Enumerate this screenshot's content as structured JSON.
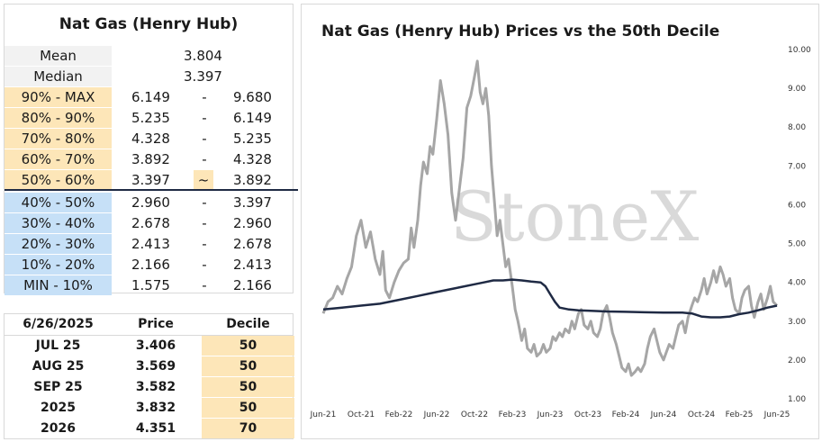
{
  "decile_table": {
    "title": "Nat Gas (Henry Hub)",
    "mean_label": "Mean",
    "mean_value": "3.804",
    "median_label": "Median",
    "median_value": "3.397",
    "rows": [
      {
        "label": "90% - MAX",
        "low": "6.149",
        "sep": "-",
        "high": "9.680",
        "tone": "orange"
      },
      {
        "label": "80% - 90%",
        "low": "5.235",
        "sep": "-",
        "high": "6.149",
        "tone": "orange"
      },
      {
        "label": "70% - 80%",
        "low": "4.328",
        "sep": "-",
        "high": "5.235",
        "tone": "orange"
      },
      {
        "label": "60% - 70%",
        "low": "3.892",
        "sep": "-",
        "high": "4.328",
        "tone": "orange"
      },
      {
        "label": "50% - 60%",
        "low": "3.397",
        "sep": "~",
        "high": "3.892",
        "tone": "orange"
      },
      {
        "label": "40% - 50%",
        "low": "2.960",
        "sep": "-",
        "high": "3.397",
        "tone": "blue"
      },
      {
        "label": "30% - 40%",
        "low": "2.678",
        "sep": "-",
        "high": "2.960",
        "tone": "blue"
      },
      {
        "label": "20% - 30%",
        "low": "2.413",
        "sep": "-",
        "high": "2.678",
        "tone": "blue"
      },
      {
        "label": "10% - 20%",
        "low": "2.166",
        "sep": "-",
        "high": "2.413",
        "tone": "blue"
      },
      {
        "label": "MIN - 10%",
        "low": "1.575",
        "sep": "-",
        "high": "2.166",
        "tone": "blue"
      }
    ],
    "colors": {
      "orange": "#fde6b8",
      "blue": "#c6e0f7",
      "divider": "#1f2a44"
    }
  },
  "forward_table": {
    "headers": [
      "6/26/2025",
      "Price",
      "Decile"
    ],
    "rows": [
      {
        "contract": "JUL 25",
        "price": "3.406",
        "decile": "50"
      },
      {
        "contract": "AUG 25",
        "price": "3.569",
        "decile": "50"
      },
      {
        "contract": "SEP 25",
        "price": "3.582",
        "decile": "50"
      },
      {
        "contract": "2025",
        "price": "3.832",
        "decile": "50"
      },
      {
        "contract": "2026",
        "price": "4.351",
        "decile": "70"
      }
    ]
  },
  "chart_data": {
    "type": "line",
    "title": "Nat Gas (Henry Hub) Prices vs the 50th Decile",
    "watermark": "StoneX",
    "x_tick_labels": [
      "Jun-21",
      "Oct-21",
      "Feb-22",
      "Jun-22",
      "Oct-22",
      "Feb-23",
      "Jun-23",
      "Oct-23",
      "Feb-24",
      "Jun-24",
      "Oct-24",
      "Feb-25",
      "Jun-25"
    ],
    "y_tick_labels": [
      "1.00",
      "2.00",
      "3.00",
      "4.00",
      "5.00",
      "6.00",
      "7.00",
      "8.00",
      "9.00",
      "10.00"
    ],
    "ylim": [
      1,
      10
    ],
    "y_axis_position": "right",
    "x_range_months": [
      0,
      48
    ],
    "series": [
      {
        "color": "#a6a6a6",
        "points": [
          [
            0,
            3.2
          ],
          [
            0.5,
            3.5
          ],
          [
            1,
            3.6
          ],
          [
            1.5,
            3.9
          ],
          [
            2,
            3.7
          ],
          [
            2.5,
            4.1
          ],
          [
            3,
            4.4
          ],
          [
            3.5,
            5.2
          ],
          [
            4,
            5.6
          ],
          [
            4.5,
            4.9
          ],
          [
            5,
            5.3
          ],
          [
            5.5,
            4.6
          ],
          [
            6,
            4.2
          ],
          [
            6.3,
            4.8
          ],
          [
            6.6,
            3.8
          ],
          [
            7,
            3.6
          ],
          [
            7.5,
            4.0
          ],
          [
            8,
            4.3
          ],
          [
            8.5,
            4.5
          ],
          [
            9,
            4.6
          ],
          [
            9.3,
            5.4
          ],
          [
            9.6,
            4.9
          ],
          [
            10,
            5.6
          ],
          [
            10.3,
            6.5
          ],
          [
            10.6,
            7.1
          ],
          [
            11,
            6.8
          ],
          [
            11.3,
            7.5
          ],
          [
            11.6,
            7.3
          ],
          [
            12,
            8.2
          ],
          [
            12.4,
            9.2
          ],
          [
            12.8,
            8.6
          ],
          [
            13.2,
            7.8
          ],
          [
            13.6,
            6.3
          ],
          [
            14,
            5.6
          ],
          [
            14.4,
            6.4
          ],
          [
            14.8,
            7.2
          ],
          [
            15.2,
            8.5
          ],
          [
            15.6,
            8.8
          ],
          [
            16,
            9.3
          ],
          [
            16.3,
            9.7
          ],
          [
            16.6,
            8.9
          ],
          [
            16.9,
            8.6
          ],
          [
            17.2,
            9.0
          ],
          [
            17.5,
            8.3
          ],
          [
            17.8,
            7.0
          ],
          [
            18.1,
            6.1
          ],
          [
            18.4,
            5.2
          ],
          [
            18.7,
            5.6
          ],
          [
            19,
            5.0
          ],
          [
            19.3,
            4.4
          ],
          [
            19.6,
            4.6
          ],
          [
            20,
            3.9
          ],
          [
            20.3,
            3.3
          ],
          [
            20.6,
            3.0
          ],
          [
            21,
            2.5
          ],
          [
            21.3,
            2.8
          ],
          [
            21.6,
            2.3
          ],
          [
            22,
            2.2
          ],
          [
            22.3,
            2.4
          ],
          [
            22.6,
            2.1
          ],
          [
            23,
            2.2
          ],
          [
            23.3,
            2.4
          ],
          [
            23.6,
            2.2
          ],
          [
            24,
            2.3
          ],
          [
            24.3,
            2.6
          ],
          [
            24.6,
            2.5
          ],
          [
            25,
            2.7
          ],
          [
            25.3,
            2.6
          ],
          [
            25.6,
            2.8
          ],
          [
            26,
            2.7
          ],
          [
            26.3,
            3.0
          ],
          [
            26.6,
            2.8
          ],
          [
            27,
            3.2
          ],
          [
            27.3,
            3.3
          ],
          [
            27.6,
            2.9
          ],
          [
            28,
            2.8
          ],
          [
            28.3,
            3.0
          ],
          [
            28.6,
            2.7
          ],
          [
            29,
            2.6
          ],
          [
            29.3,
            2.8
          ],
          [
            29.6,
            3.2
          ],
          [
            30,
            3.4
          ],
          [
            30.3,
            3.1
          ],
          [
            30.6,
            2.7
          ],
          [
            31,
            2.4
          ],
          [
            31.3,
            2.1
          ],
          [
            31.6,
            1.8
          ],
          [
            32,
            1.7
          ],
          [
            32.3,
            1.9
          ],
          [
            32.6,
            1.6
          ],
          [
            33,
            1.7
          ],
          [
            33.3,
            1.8
          ],
          [
            33.6,
            1.7
          ],
          [
            34,
            1.9
          ],
          [
            34.3,
            2.3
          ],
          [
            34.6,
            2.6
          ],
          [
            35,
            2.8
          ],
          [
            35.3,
            2.5
          ],
          [
            35.6,
            2.2
          ],
          [
            36,
            2.0
          ],
          [
            36.3,
            2.2
          ],
          [
            36.6,
            2.4
          ],
          [
            37,
            2.3
          ],
          [
            37.3,
            2.6
          ],
          [
            37.6,
            2.9
          ],
          [
            38,
            3.0
          ],
          [
            38.3,
            2.7
          ],
          [
            38.6,
            3.1
          ],
          [
            39,
            3.4
          ],
          [
            39.3,
            3.6
          ],
          [
            39.6,
            3.5
          ],
          [
            40,
            3.8
          ],
          [
            40.3,
            4.1
          ],
          [
            40.6,
            3.7
          ],
          [
            41,
            4.0
          ],
          [
            41.3,
            4.3
          ],
          [
            41.6,
            4.0
          ],
          [
            42,
            4.4
          ],
          [
            42.3,
            4.2
          ],
          [
            42.6,
            3.9
          ],
          [
            43,
            4.1
          ],
          [
            43.3,
            3.6
          ],
          [
            43.6,
            3.3
          ],
          [
            44,
            3.2
          ],
          [
            44.3,
            3.6
          ],
          [
            44.6,
            3.8
          ],
          [
            45,
            3.9
          ],
          [
            45.3,
            3.4
          ],
          [
            45.6,
            3.1
          ],
          [
            46,
            3.5
          ],
          [
            46.3,
            3.7
          ],
          [
            46.6,
            3.3
          ],
          [
            47,
            3.6
          ],
          [
            47.3,
            3.9
          ],
          [
            47.6,
            3.5
          ],
          [
            48,
            3.4
          ]
        ]
      },
      {
        "color": "#1f2a44",
        "points": [
          [
            0,
            3.3
          ],
          [
            2,
            3.35
          ],
          [
            4,
            3.4
          ],
          [
            6,
            3.45
          ],
          [
            8,
            3.55
          ],
          [
            10,
            3.65
          ],
          [
            12,
            3.75
          ],
          [
            14,
            3.85
          ],
          [
            16,
            3.95
          ],
          [
            17,
            4.0
          ],
          [
            18,
            4.05
          ],
          [
            19,
            4.05
          ],
          [
            20,
            4.07
          ],
          [
            21,
            4.05
          ],
          [
            22,
            4.02
          ],
          [
            23,
            4.0
          ],
          [
            23.5,
            3.9
          ],
          [
            24,
            3.7
          ],
          [
            24.5,
            3.5
          ],
          [
            25,
            3.35
          ],
          [
            26,
            3.3
          ],
          [
            27,
            3.28
          ],
          [
            28,
            3.27
          ],
          [
            30,
            3.25
          ],
          [
            32,
            3.24
          ],
          [
            34,
            3.23
          ],
          [
            36,
            3.22
          ],
          [
            38,
            3.22
          ],
          [
            39,
            3.2
          ],
          [
            40,
            3.12
          ],
          [
            41,
            3.1
          ],
          [
            42,
            3.1
          ],
          [
            43,
            3.12
          ],
          [
            44,
            3.18
          ],
          [
            45,
            3.22
          ],
          [
            46,
            3.28
          ],
          [
            47,
            3.35
          ],
          [
            48,
            3.4
          ]
        ]
      }
    ]
  }
}
